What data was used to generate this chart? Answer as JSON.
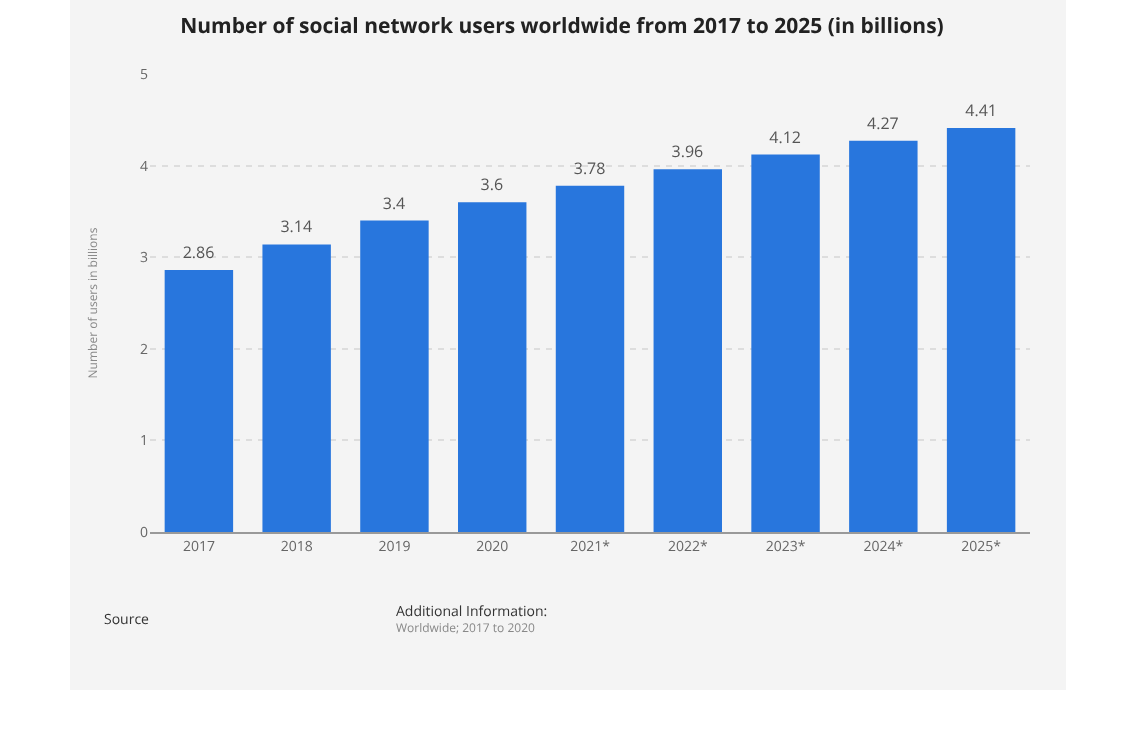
{
  "chart_data": {
    "type": "bar",
    "title": "Number of social network users worldwide from 2017 to 2025 (in billions)",
    "ylabel": "Number of users in billions",
    "categories": [
      "2017",
      "2018",
      "2019",
      "2020",
      "2021*",
      "2022*",
      "2023*",
      "2024*",
      "2025*"
    ],
    "values": [
      2.86,
      3.14,
      3.4,
      3.6,
      3.78,
      3.96,
      4.12,
      4.27,
      4.41
    ],
    "color": "#2876dd",
    "ylim": [
      0,
      5
    ],
    "yticks": [
      0,
      1,
      2,
      3,
      4,
      5
    ],
    "grid": "y",
    "data_labels": true,
    "annotations": [
      "Source",
      "Additional Information:",
      "Worldwide; 2017 to 2020"
    ]
  }
}
